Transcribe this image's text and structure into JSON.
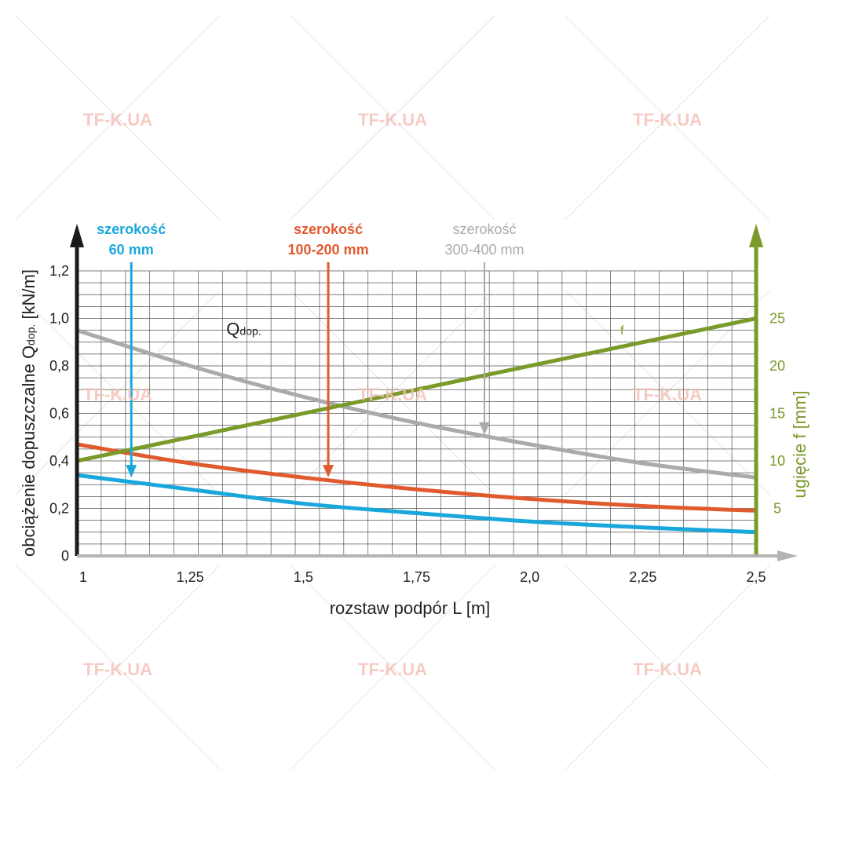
{
  "watermark": "TF-K.UA",
  "chart_data": {
    "type": "line",
    "xlabel": "rozstaw podpór L [m]",
    "ylabel_left": {
      "prefix": "obciążenie dopuszczalne Q",
      "sub": "dop.",
      "suffix": " [kN/m]"
    },
    "ylabel_right": "ugięcie f [mm]",
    "x_ticks": [
      {
        "value": 1.0,
        "label": "1"
      },
      {
        "value": 1.25,
        "label": "1,25"
      },
      {
        "value": 1.5,
        "label": "1,5"
      },
      {
        "value": 1.75,
        "label": "1,75"
      },
      {
        "value": 2.0,
        "label": "2,0"
      },
      {
        "value": 2.25,
        "label": "2,25"
      },
      {
        "value": 2.5,
        "label": "2,5"
      }
    ],
    "y_left_ticks": [
      {
        "value": 0,
        "label": "0"
      },
      {
        "value": 0.2,
        "label": "0,2"
      },
      {
        "value": 0.4,
        "label": "0,4"
      },
      {
        "value": 0.6,
        "label": "0,6"
      },
      {
        "value": 0.8,
        "label": "0,8"
      },
      {
        "value": 1.0,
        "label": "1,0"
      },
      {
        "value": 1.2,
        "label": "1,2"
      }
    ],
    "y_right_ticks": [
      {
        "value": 5,
        "label": "5"
      },
      {
        "value": 10,
        "label": "10"
      },
      {
        "value": 15,
        "label": "15"
      },
      {
        "value": 20,
        "label": "20"
      },
      {
        "value": 25,
        "label": "25"
      }
    ],
    "xlim": [
      1.0,
      2.5
    ],
    "ylim_left": [
      0,
      1.2
    ],
    "ylim_right": [
      0,
      30
    ],
    "grid": true,
    "series": [
      {
        "key": "gray",
        "axis": "left",
        "color": "#aaaaaa",
        "x": [
          1.0,
          1.25,
          1.5,
          1.75,
          2.0,
          2.25,
          2.5
        ],
        "y": [
          0.95,
          0.8,
          0.67,
          0.56,
          0.47,
          0.39,
          0.33
        ]
      },
      {
        "key": "orange",
        "axis": "left",
        "color": "#e05a2e",
        "x": [
          1.0,
          1.25,
          1.5,
          1.75,
          2.0,
          2.25,
          2.5
        ],
        "y": [
          0.47,
          0.39,
          0.33,
          0.28,
          0.24,
          0.21,
          0.19
        ]
      },
      {
        "key": "blue",
        "axis": "left",
        "color": "#1aa7dc",
        "x": [
          1.0,
          1.25,
          1.5,
          1.75,
          2.0,
          2.25,
          2.5
        ],
        "y": [
          0.34,
          0.28,
          0.22,
          0.18,
          0.145,
          0.12,
          0.1
        ]
      },
      {
        "name": "f",
        "key": "f",
        "axis": "right",
        "color": "#7a9a2a",
        "x": [
          1.0,
          2.5
        ],
        "y": [
          10,
          25
        ]
      }
    ],
    "annotations": [
      {
        "key": "blue",
        "line1": "szerokość",
        "line2": "60 mm",
        "color": "#1aa7dc",
        "x": 1.12,
        "target_y": 0.33
      },
      {
        "key": "orange",
        "line1": "szerokość",
        "line2": "100-200 mm",
        "color": "#e05a2e",
        "x": 1.555,
        "target_y": 0.33
      },
      {
        "key": "gray",
        "line1": "szerokość",
        "line2": "300-400 mm",
        "color": "#aaaaaa",
        "x": 1.9,
        "target_y": 0.51
      }
    ],
    "q_label": {
      "main": "Q",
      "sub": "dop.",
      "x": 1.33,
      "y": 0.93
    },
    "f_label": {
      "text": "f",
      "x": 2.2,
      "y": 23.3
    }
  },
  "colors": {
    "left_axis": "#1a1a1a",
    "right_axis": "#7a9a2a",
    "x_axis": "#b3b3b3",
    "grid": "#555555",
    "watermark": "#f4bfb5"
  }
}
